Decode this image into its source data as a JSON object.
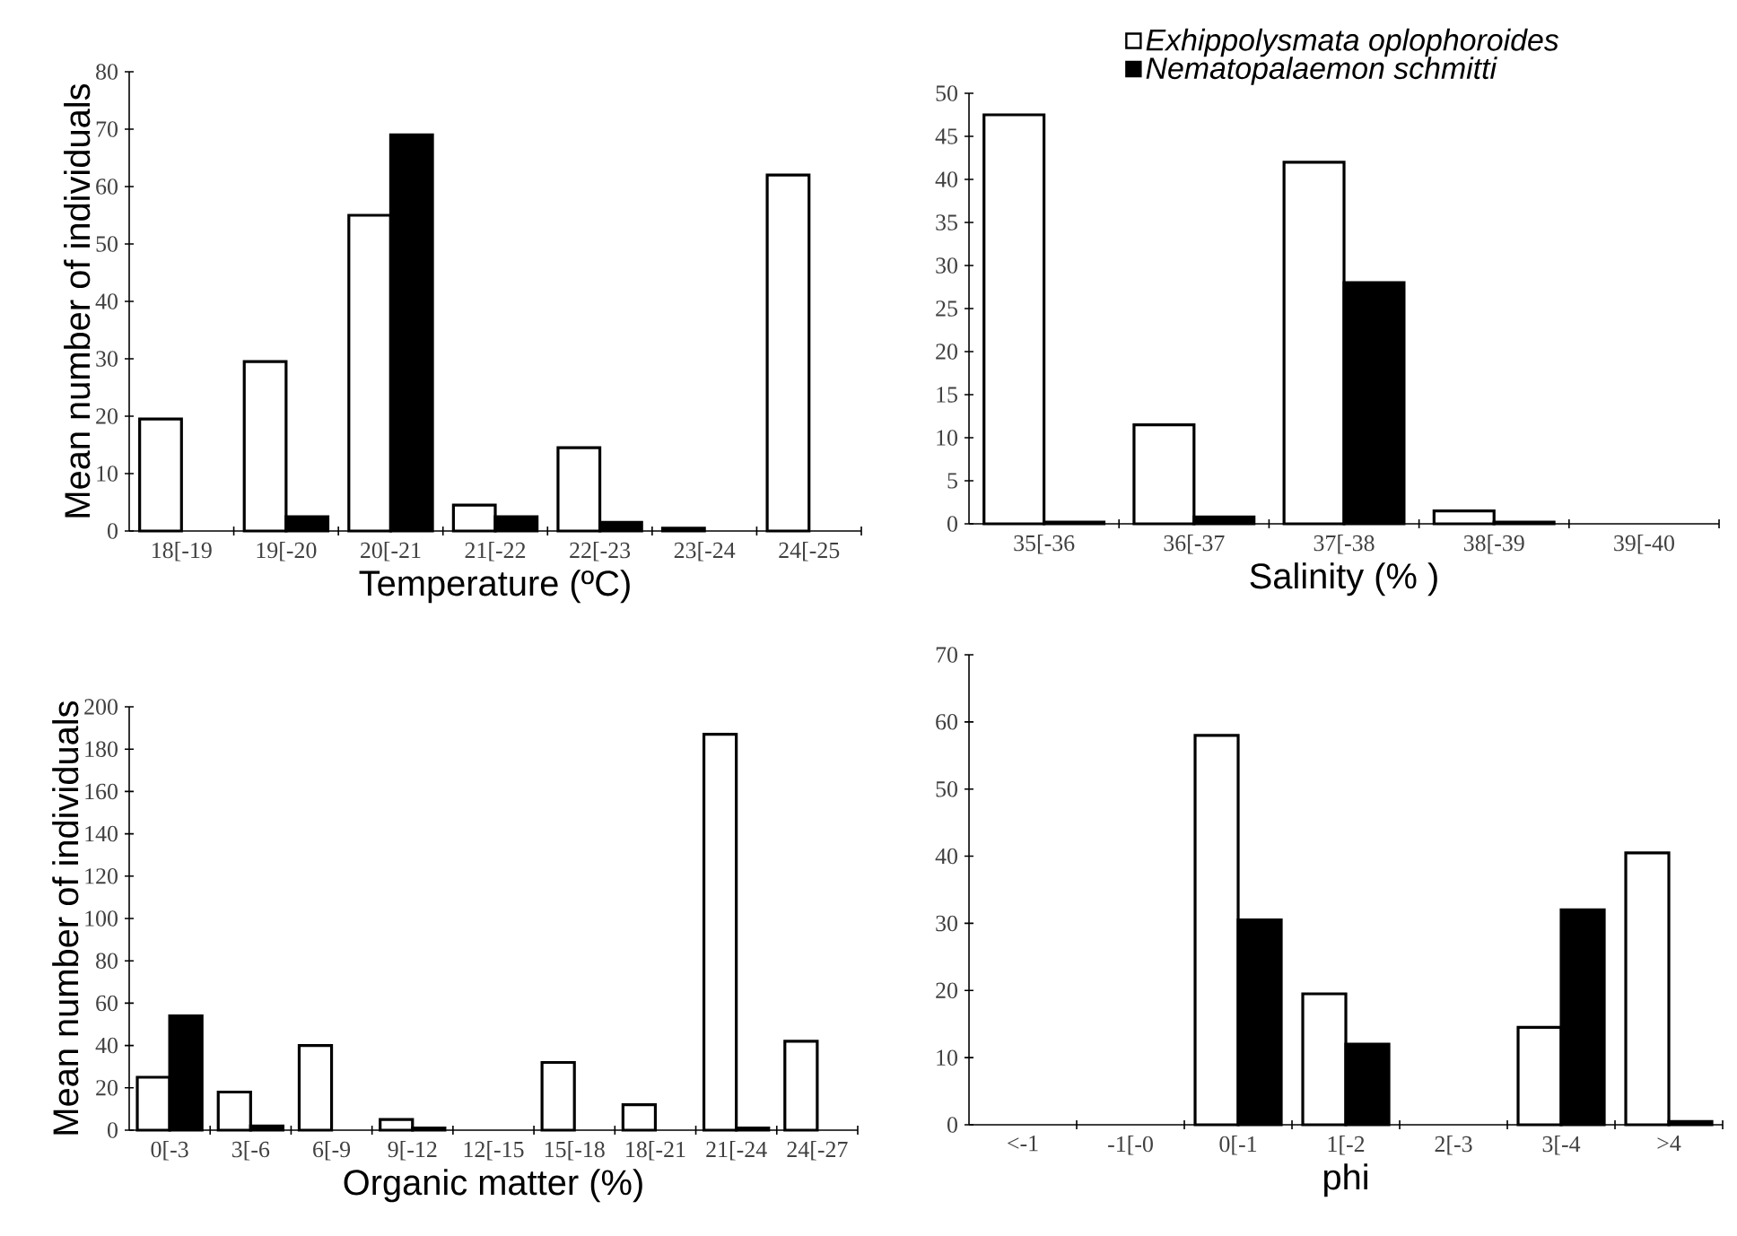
{
  "chart_data": [
    {
      "type": "bar",
      "xlabel": "Temperature (ºC)",
      "ylabel": "Mean number of individuals",
      "categories": [
        "18[-19",
        "19[-20",
        "20[-21",
        "21[-22",
        "22[-23",
        "23[-24",
        "24[-25"
      ],
      "series": [
        {
          "color": "#ffffff",
          "values": [
            19.5,
            29.5,
            55,
            4.5,
            14.5,
            0.5,
            62
          ]
        },
        {
          "color": "#000000",
          "values": [
            null,
            2.5,
            69,
            2.5,
            1.5,
            null,
            null
          ]
        }
      ],
      "ylim": [
        0,
        80
      ],
      "yticks": [
        0,
        10,
        20,
        30,
        40,
        50,
        60,
        70,
        80
      ]
    },
    {
      "type": "bar",
      "xlabel": "Salinity (% )",
      "categories": [
        "35[-36",
        "36[-37",
        "37[-38",
        "38[-39",
        "39[-40"
      ],
      "series": [
        {
          "name": "Exhippolysmata oplophoroides",
          "color": "#ffffff",
          "values": [
            47.5,
            11.5,
            42,
            1.5,
            null
          ]
        },
        {
          "name": "Nematopalaemon schmitti",
          "color": "#000000",
          "values": [
            0.2,
            0.8,
            28,
            0.2,
            null
          ]
        }
      ],
      "ylim": [
        0,
        50
      ],
      "yticks": [
        0,
        5,
        10,
        15,
        20,
        25,
        30,
        35,
        40,
        45,
        50
      ],
      "legend": "top"
    },
    {
      "type": "bar",
      "xlabel": "Organic matter (%)",
      "ylabel": "Mean number of individuals",
      "categories": [
        "0[-3",
        "3[-6",
        "6[-9",
        "9[-12",
        "12[-15",
        "15[-18",
        "18[-21",
        "21[-24",
        "24[-27"
      ],
      "series": [
        {
          "color": "#ffffff",
          "values": [
            25,
            18,
            40,
            5,
            null,
            32,
            12,
            187,
            42
          ]
        },
        {
          "color": "#000000",
          "values": [
            54,
            2,
            null,
            1,
            null,
            null,
            null,
            1,
            null
          ]
        }
      ],
      "ylim": [
        0,
        200
      ],
      "yticks": [
        0,
        20,
        40,
        60,
        80,
        100,
        120,
        140,
        160,
        180,
        200
      ]
    },
    {
      "type": "bar",
      "xlabel": "phi",
      "categories": [
        "<-1",
        "-1[-0",
        "0[-1",
        "1[-2",
        "2[-3",
        "3[-4",
        ">4"
      ],
      "series": [
        {
          "color": "#ffffff",
          "values": [
            null,
            null,
            58,
            19.5,
            null,
            14.5,
            40.5
          ]
        },
        {
          "color": "#000000",
          "values": [
            null,
            null,
            30.5,
            12,
            null,
            32,
            0.5
          ]
        }
      ],
      "ylim": [
        0,
        70
      ],
      "yticks": [
        0,
        10,
        20,
        30,
        40,
        50,
        60,
        70
      ]
    }
  ]
}
